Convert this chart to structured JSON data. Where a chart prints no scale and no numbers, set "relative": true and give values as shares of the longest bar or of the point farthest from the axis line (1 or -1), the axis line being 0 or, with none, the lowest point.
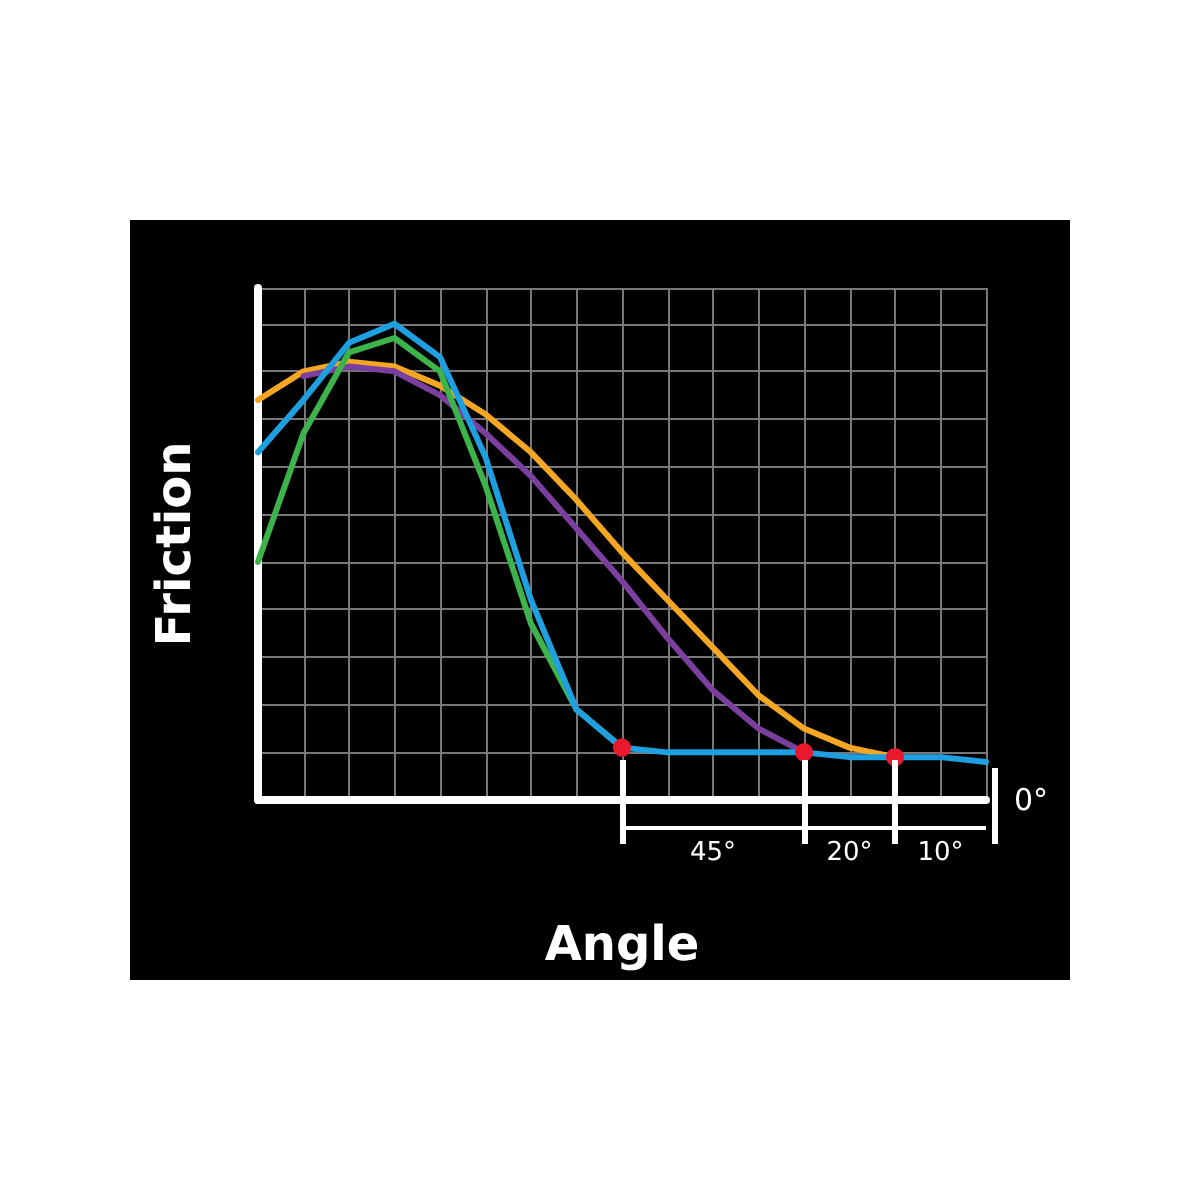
{
  "chart_data": {
    "type": "line",
    "relative": true,
    "xlabel": "Angle",
    "ylabel": "Friction",
    "categories": [
      null,
      null,
      null,
      null,
      null,
      null,
      null,
      null,
      null,
      null,
      null,
      null,
      null,
      null,
      null,
      null,
      null
    ],
    "series": [
      {
        "color": "#f5a623",
        "values": [
          0.84,
          0.9,
          0.92,
          0.91,
          0.87,
          0.81,
          0.73,
          0.63,
          0.52,
          0.42,
          0.32,
          0.22,
          0.15,
          0.11,
          0.09,
          null,
          null
        ]
      },
      {
        "color": "#7b3fa0",
        "values": [
          null,
          0.89,
          0.91,
          0.9,
          0.85,
          0.77,
          0.68,
          0.57,
          0.46,
          0.34,
          0.23,
          0.15,
          0.1,
          null,
          null,
          null,
          null
        ]
      },
      {
        "color": "#3cb44b",
        "values": [
          0.5,
          0.77,
          0.94,
          0.97,
          0.9,
          0.66,
          0.37,
          0.19,
          0.11,
          null,
          null,
          null,
          null,
          null,
          null,
          null,
          null
        ]
      },
      {
        "color": "#1e9fe0",
        "values": [
          0.73,
          0.84,
          0.96,
          1,
          0.93,
          0.72,
          0.42,
          0.19,
          0.11,
          0.1,
          0.1,
          0.1,
          0.1,
          0.09,
          0.09,
          0.09,
          0.08
        ]
      }
    ],
    "annotations": [
      "45°",
      "20°",
      "10°",
      "0°"
    ],
    "grid": true,
    "marker": "none",
    "line_style": "solid"
  }
}
